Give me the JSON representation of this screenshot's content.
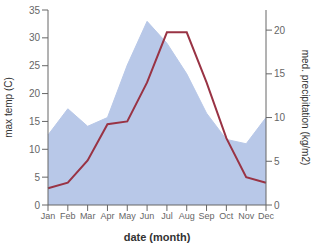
{
  "chart_data": {
    "type": "line",
    "categories": [
      "Jan",
      "Feb",
      "Mar",
      "Apr",
      "May",
      "Jun",
      "Jul",
      "Aug",
      "Sep",
      "Oct",
      "Nov",
      "Dec"
    ],
    "xlabel": "date (month)",
    "ylabel": "max temp (C)",
    "y2label": "med. precipitation (kg/m2)",
    "ylim": [
      0,
      35
    ],
    "yticks": [
      0,
      5,
      10,
      15,
      20,
      25,
      30,
      35
    ],
    "y2lim": [
      0,
      22.3
    ],
    "y2ticks": [
      0,
      5,
      10,
      15,
      20
    ],
    "grid": false,
    "series": [
      {
        "type": "area",
        "axis": "y2",
        "color": "#b8c8e8",
        "values": [
          8.0,
          11.0,
          9.0,
          10.0,
          16.0,
          21.0,
          18.5,
          15.0,
          10.5,
          7.5,
          7.0,
          10.0
        ]
      },
      {
        "type": "line",
        "color": "#993344",
        "values": [
          3.0,
          4.0,
          8.0,
          14.5,
          15.0,
          22.0,
          31.0,
          31.0,
          22.0,
          12.0,
          5.0,
          4.0
        ]
      }
    ]
  }
}
